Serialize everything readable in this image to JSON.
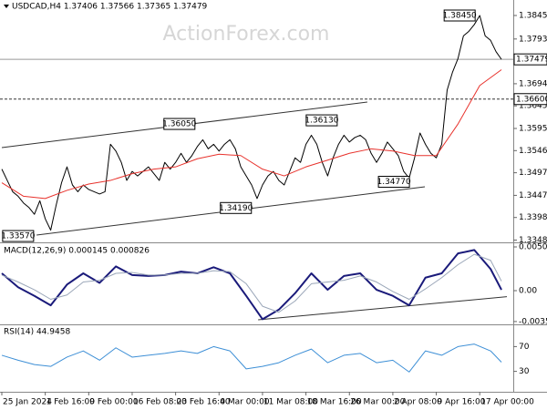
{
  "chart_data": [
    {
      "type": "line",
      "title": "USDCAD,H4 1.37406 1.37566 1.37365 1.37479",
      "watermark": "ActionForex.com",
      "xlim": [
        0,
        93
      ],
      "ylim": [
        1.3345,
        1.38793
      ],
      "yticks": [
        {
          "value": 1.3845,
          "label": "1.38450"
        },
        {
          "value": 1.3793,
          "label": "1.37930"
        },
        {
          "value": 1.3694,
          "label": "1.36940"
        },
        {
          "value": 1.3645,
          "label": "1.36450"
        },
        {
          "value": 1.3595,
          "label": "1.35950"
        },
        {
          "value": 1.3546,
          "label": "1.35460"
        },
        {
          "value": 1.3497,
          "label": "1.34970"
        },
        {
          "value": 1.3447,
          "label": "1.34470"
        },
        {
          "value": 1.3398,
          "label": "1.33980"
        },
        {
          "value": 1.3348,
          "label": "1.33480"
        }
      ],
      "series": [
        {
          "color": "#000000",
          "x": [
            0,
            1,
            2,
            3,
            4,
            5,
            6,
            7,
            8,
            9,
            10,
            11,
            12,
            13,
            14,
            15,
            16,
            17,
            18,
            19,
            20,
            21,
            22,
            23,
            24,
            25,
            26,
            27,
            28,
            29,
            30,
            31,
            32,
            33,
            34,
            35,
            36,
            37,
            38,
            39,
            40,
            41,
            42,
            43,
            44,
            45,
            46,
            47,
            48,
            49,
            50,
            51,
            52,
            53,
            54,
            55,
            56,
            57,
            58,
            59,
            60,
            61,
            62,
            63,
            64,
            65,
            66,
            67,
            68,
            69,
            70,
            71,
            72,
            73,
            74,
            75,
            76,
            77,
            78,
            79,
            80,
            81,
            82,
            83,
            84,
            85,
            86,
            87,
            88,
            89,
            90,
            91,
            92
          ],
          "values": [
            1.3505,
            1.348,
            1.3455,
            1.3445,
            1.343,
            1.342,
            1.3405,
            1.3435,
            1.3395,
            1.337,
            1.3425,
            1.3475,
            1.351,
            1.347,
            1.3455,
            1.347,
            1.346,
            1.3455,
            1.345,
            1.3455,
            1.356,
            1.3545,
            1.352,
            1.348,
            1.35,
            1.349,
            1.35,
            1.351,
            1.3495,
            1.348,
            1.352,
            1.3505,
            1.352,
            1.354,
            1.352,
            1.3535,
            1.3555,
            1.357,
            1.355,
            1.356,
            1.3545,
            1.356,
            1.357,
            1.355,
            1.351,
            1.349,
            1.347,
            1.344,
            1.347,
            1.349,
            1.35,
            1.348,
            1.347,
            1.35,
            1.353,
            1.352,
            1.356,
            1.358,
            1.356,
            1.352,
            1.349,
            1.353,
            1.356,
            1.358,
            1.3565,
            1.3575,
            1.358,
            1.357,
            1.354,
            1.352,
            1.354,
            1.3565,
            1.355,
            1.3535,
            1.35,
            1.3485,
            1.353,
            1.3585,
            1.356,
            1.354,
            1.353,
            1.356,
            1.368,
            1.372,
            1.375,
            1.38,
            1.381,
            1.3825,
            1.3845,
            1.38,
            1.379,
            1.3765,
            1.3748
          ]
        },
        {
          "color": "#e8322c",
          "x": [
            0,
            4,
            8,
            12,
            16,
            20,
            24,
            28,
            32,
            36,
            40,
            44,
            48,
            52,
            56,
            60,
            64,
            68,
            72,
            76,
            80,
            84,
            88,
            92
          ],
          "values": [
            1.3475,
            1.3445,
            1.344,
            1.3458,
            1.3472,
            1.348,
            1.3495,
            1.3505,
            1.351,
            1.3528,
            1.3538,
            1.3535,
            1.3505,
            1.349,
            1.351,
            1.3525,
            1.354,
            1.355,
            1.3545,
            1.3535,
            1.3535,
            1.3605,
            1.369,
            1.3725
          ]
        }
      ],
      "lines": [
        {
          "x": [
            0,
            67.3
          ],
          "y": [
            1.35527,
            1.36535
          ]
        },
        {
          "x": [
            6.4,
            77.9
          ],
          "y": [
            1.33591,
            1.3466
          ]
        }
      ],
      "levels": [
        {
          "value": 1.37479,
          "label": "1.37479",
          "style": "solid"
        },
        {
          "value": 1.366,
          "label": "1.36600",
          "style": "dashed"
        }
      ],
      "annotations": [
        {
          "label": "1.38450",
          "value": 1.3845,
          "x": 84.3
        },
        {
          "label": "1.36050",
          "value": 1.3605,
          "x": 32.7
        },
        {
          "label": "1.36130",
          "value": 1.3613,
          "x": 58.9
        },
        {
          "label": "1.34190",
          "value": 1.3419,
          "x": 43.1
        },
        {
          "label": "1.34770",
          "value": 1.3477,
          "x": 72.2
        },
        {
          "label": "1.33570",
          "value": 1.3357,
          "x": 3.0
        }
      ]
    },
    {
      "type": "line",
      "title": "MACD(12,26,9) 0.000145 0.000826",
      "xlim": [
        0,
        93
      ],
      "ylim": [
        -0.00379,
        0.00537
      ],
      "yticks": [
        0.005054,
        {
          "value": 0,
          "label": "0.00"
        },
        -0.003569
      ],
      "series": [
        {
          "color": "#1a1a7a",
          "width": 2,
          "x": [
            0,
            3,
            6,
            9,
            12,
            15,
            18,
            21,
            24,
            27,
            30,
            33,
            36,
            39,
            42,
            45,
            48,
            51,
            54,
            57,
            60,
            63,
            66,
            69,
            72,
            75,
            78,
            81,
            84,
            87,
            90,
            92
          ],
          "values": [
            0.002,
            0.0004,
            -0.0006,
            -0.0017,
            0.0007,
            0.002,
            0.0009,
            0.0028,
            0.0018,
            0.0017,
            0.0018,
            0.0022,
            0.002,
            0.0027,
            0.002,
            -0.0006,
            -0.0033,
            -0.0022,
            -0.0003,
            0.002,
            0.0001,
            0.0017,
            0.002,
            0.0001,
            -0.0006,
            -0.0017,
            0.0015,
            0.002,
            0.0043,
            0.0047,
            0.0025,
            0.0001
          ]
        },
        {
          "color": "#9aa6b8",
          "width": 1,
          "x": [
            0,
            3,
            6,
            9,
            12,
            15,
            18,
            21,
            24,
            27,
            30,
            33,
            36,
            39,
            42,
            45,
            48,
            51,
            54,
            57,
            60,
            63,
            66,
            69,
            72,
            75,
            78,
            81,
            84,
            87,
            90,
            92
          ],
          "values": [
            0.0018,
            0.001,
            0.0001,
            -0.001,
            -0.0005,
            0.001,
            0.0012,
            0.002,
            0.0021,
            0.0018,
            0.0018,
            0.002,
            0.002,
            0.0023,
            0.0022,
            0.0008,
            -0.0018,
            -0.0025,
            -0.0012,
            0.0008,
            0.001,
            0.0012,
            0.0017,
            0.001,
            -0.0001,
            -0.001,
            0.0002,
            0.0015,
            0.003,
            0.0042,
            0.0035,
            0.0011
          ]
        }
      ],
      "lines": [
        {
          "x": [
            47.2,
            93
          ],
          "y": [
            -0.00337,
            -0.0007
          ]
        }
      ]
    },
    {
      "type": "line",
      "title": "RSI(14) 44.9458",
      "xlim": [
        0,
        93
      ],
      "ylim": [
        0,
        100
      ],
      "yticks": [
        70,
        30
      ],
      "xticks": [
        {
          "value": 0,
          "label": "25 Jan 2024"
        },
        {
          "value": 8,
          "label": "1 Feb 16:00"
        },
        {
          "value": 16,
          "label": "9 Feb 00:00"
        },
        {
          "value": 24,
          "label": "16 Feb 08:00"
        },
        {
          "value": 32,
          "label": "23 Feb 16:00"
        },
        {
          "value": 40,
          "label": "4 Mar 00:00"
        },
        {
          "value": 48,
          "label": "11 Mar 08:00"
        },
        {
          "value": 56,
          "label": "18 Mar 16:00"
        },
        {
          "value": 64,
          "label": "26 Mar 00:00"
        },
        {
          "value": 72,
          "label": "2 Apr 08:00"
        },
        {
          "value": 80,
          "label": "9 Apr 16:00"
        },
        {
          "value": 88,
          "label": "17 Apr 00:00"
        }
      ],
      "series": [
        {
          "color": "#3d8fd6",
          "width": 1,
          "x": [
            0,
            3,
            6,
            9,
            12,
            15,
            18,
            21,
            24,
            27,
            30,
            33,
            36,
            39,
            42,
            45,
            48,
            51,
            54,
            57,
            60,
            63,
            66,
            69,
            72,
            75,
            78,
            81,
            84,
            87,
            90,
            92
          ],
          "values": [
            56,
            48,
            41,
            38,
            53,
            63,
            48,
            68,
            53,
            56,
            59,
            63,
            59,
            70,
            63,
            34,
            38,
            44,
            56,
            66,
            44,
            56,
            59,
            44,
            48,
            29,
            63,
            56,
            70,
            74,
            63,
            44.9
          ]
        }
      ]
    }
  ]
}
